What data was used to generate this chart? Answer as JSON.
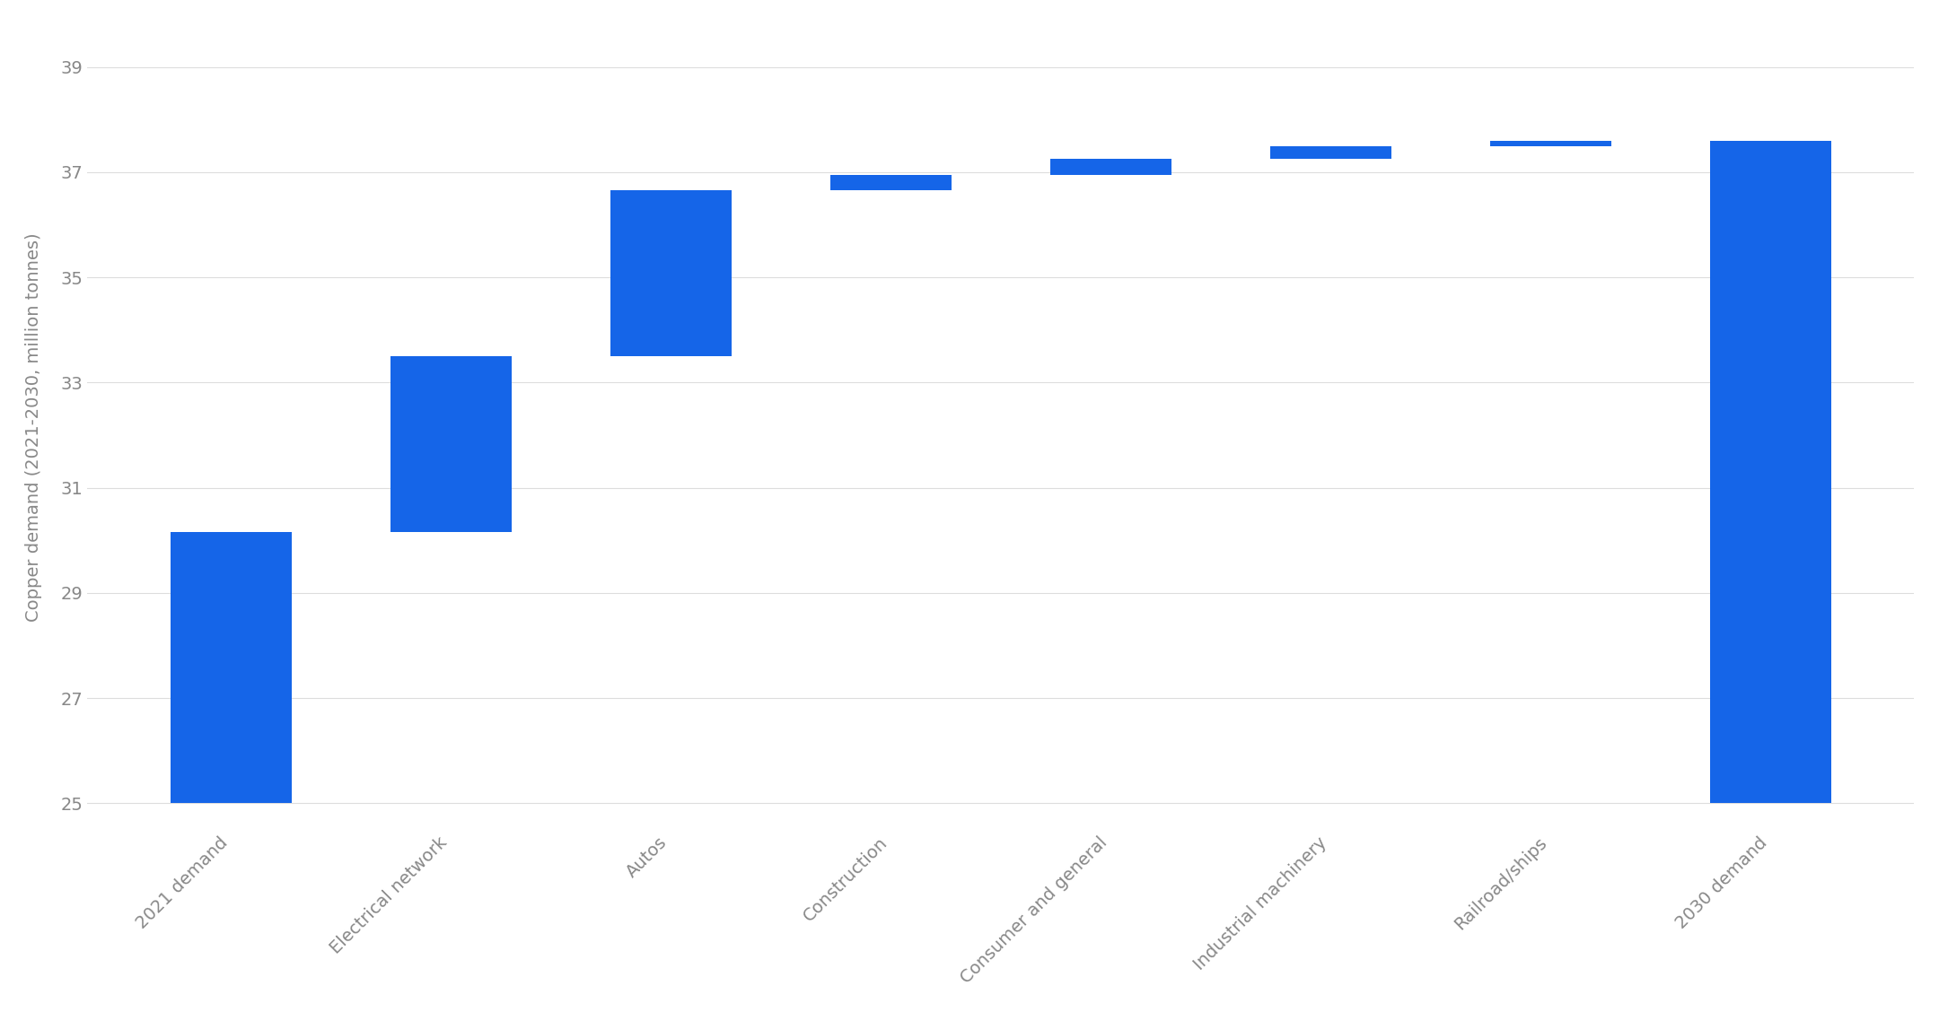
{
  "categories": [
    "2021 demand",
    "Electrical network",
    "Autos",
    "Construction",
    "Consumer and general",
    "Industrial machinery",
    "Railroad/ships",
    "2030 demand"
  ],
  "bar_bottoms": [
    25.0,
    30.15,
    33.5,
    36.65,
    36.95,
    37.25,
    37.5,
    25.0
  ],
  "bar_tops": [
    30.15,
    33.5,
    36.65,
    36.95,
    37.25,
    37.5,
    37.6,
    37.6
  ],
  "is_full_bar": [
    true,
    false,
    false,
    false,
    false,
    false,
    false,
    true
  ],
  "bar_color": "#1565e8",
  "background_color": "#ffffff",
  "ylabel": "Copper demand (2021-2030, million tonnes)",
  "yticks": [
    25,
    27,
    29,
    31,
    33,
    35,
    37,
    39
  ],
  "ylim": [
    24.5,
    39.8
  ],
  "bar_width": 0.55,
  "tick_label_color": "#888888",
  "grid_color": "#dddddd",
  "ylabel_color": "#888888",
  "ylabel_fontsize": 14,
  "tick_fontsize": 14
}
